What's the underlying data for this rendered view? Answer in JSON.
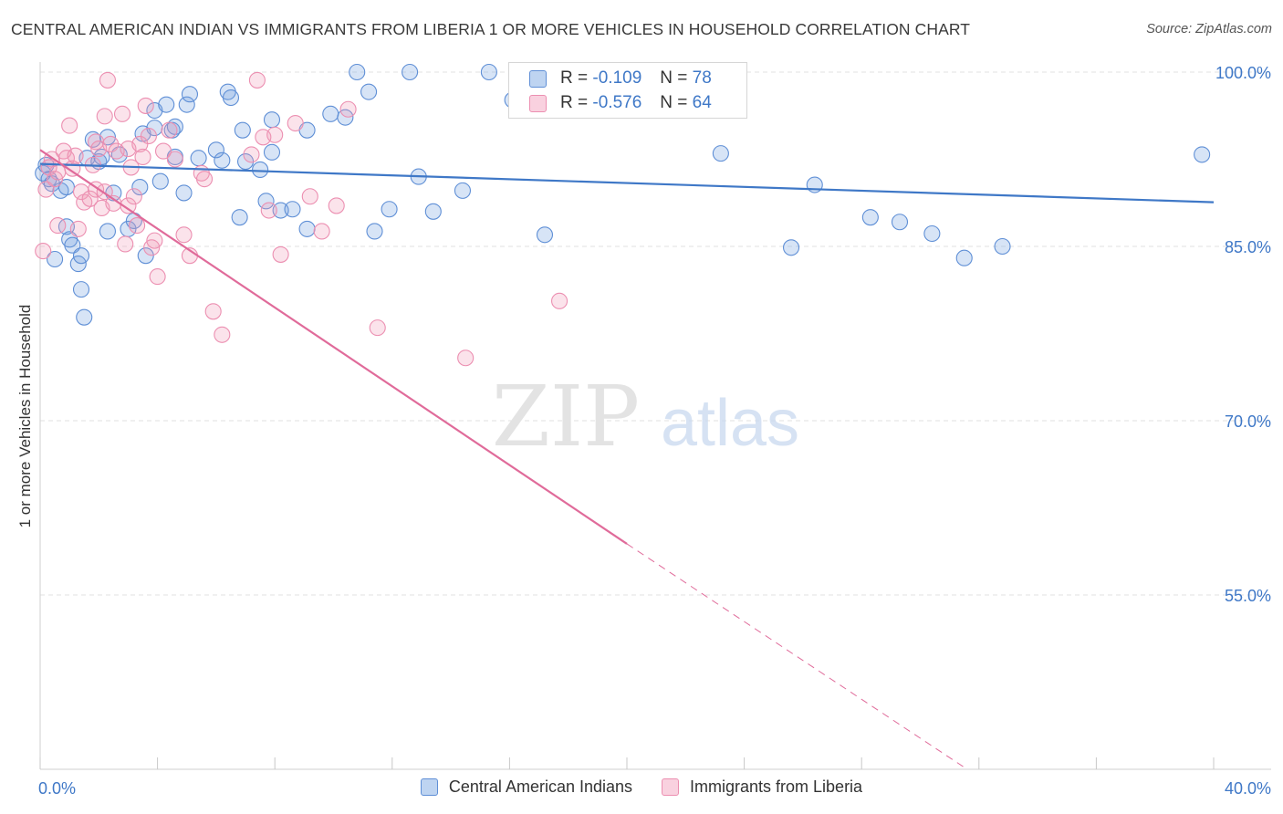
{
  "chart_data": {
    "type": "scatter",
    "title": "CENTRAL AMERICAN INDIAN VS IMMIGRANTS FROM LIBERIA 1 OR MORE VEHICLES IN HOUSEHOLD CORRELATION CHART",
    "source": "Source: ZipAtlas.com",
    "ylabel": "1 or more Vehicles in Household",
    "xlim": [
      0,
      40
    ],
    "ylim": [
      40,
      100
    ],
    "x_tick_labels": [
      "0.0%",
      "40.0%"
    ],
    "y_ticks": [
      55,
      70,
      85,
      100
    ],
    "y_tick_labels": [
      "55.0%",
      "70.0%",
      "85.0%",
      "100.0%"
    ],
    "watermark": {
      "zip": "ZIP",
      "atlas": "atlas"
    },
    "series": [
      {
        "name": "Central American Indians",
        "color": "#6f9fe0",
        "line_color": "#3f78c7",
        "R": "-0.109",
        "N": "78",
        "trend": {
          "x1": 0,
          "y1": 92.1,
          "x2": 40,
          "y2": 88.8
        },
        "points": [
          [
            0.1,
            91.3
          ],
          [
            0.2,
            92.0
          ],
          [
            0.3,
            90.8
          ],
          [
            0.4,
            90.4
          ],
          [
            0.5,
            83.9
          ],
          [
            0.7,
            89.8
          ],
          [
            0.9,
            86.7
          ],
          [
            0.9,
            90.1
          ],
          [
            1.0,
            85.6
          ],
          [
            1.1,
            85.1
          ],
          [
            1.3,
            83.5
          ],
          [
            1.4,
            84.2
          ],
          [
            1.4,
            81.3
          ],
          [
            1.5,
            78.9
          ],
          [
            1.6,
            92.6
          ],
          [
            1.8,
            94.2
          ],
          [
            2.0,
            92.3
          ],
          [
            2.1,
            92.7
          ],
          [
            2.3,
            94.4
          ],
          [
            2.3,
            86.3
          ],
          [
            2.5,
            89.6
          ],
          [
            2.7,
            92.9
          ],
          [
            3.0,
            86.5
          ],
          [
            3.2,
            87.2
          ],
          [
            3.4,
            90.1
          ],
          [
            3.5,
            94.7
          ],
          [
            3.6,
            84.2
          ],
          [
            3.9,
            96.7
          ],
          [
            3.9,
            95.2
          ],
          [
            4.1,
            90.6
          ],
          [
            4.3,
            97.2
          ],
          [
            4.5,
            95.0
          ],
          [
            4.6,
            95.3
          ],
          [
            4.6,
            92.7
          ],
          [
            4.9,
            89.6
          ],
          [
            5.0,
            97.2
          ],
          [
            5.1,
            98.1
          ],
          [
            5.4,
            92.6
          ],
          [
            6.0,
            93.3
          ],
          [
            6.2,
            92.4
          ],
          [
            6.4,
            98.3
          ],
          [
            6.5,
            97.8
          ],
          [
            6.8,
            87.5
          ],
          [
            6.9,
            95.0
          ],
          [
            7.0,
            92.3
          ],
          [
            7.5,
            91.6
          ],
          [
            7.7,
            88.9
          ],
          [
            7.9,
            93.1
          ],
          [
            7.9,
            95.9
          ],
          [
            8.2,
            88.1
          ],
          [
            8.6,
            88.2
          ],
          [
            9.1,
            86.5
          ],
          [
            9.1,
            95.0
          ],
          [
            9.9,
            96.4
          ],
          [
            10.4,
            96.1
          ],
          [
            10.8,
            100.0
          ],
          [
            11.2,
            98.3
          ],
          [
            11.4,
            86.3
          ],
          [
            11.9,
            88.2
          ],
          [
            12.6,
            100.0
          ],
          [
            12.9,
            91.0
          ],
          [
            13.4,
            88.0
          ],
          [
            14.4,
            89.8
          ],
          [
            15.3,
            100.0
          ],
          [
            16.1,
            97.6
          ],
          [
            17.2,
            86.0
          ],
          [
            17.6,
            100.0
          ],
          [
            18.6,
            100.0
          ],
          [
            22.7,
            100.0
          ],
          [
            23.2,
            93.0
          ],
          [
            25.6,
            84.9
          ],
          [
            26.4,
            90.3
          ],
          [
            28.3,
            87.5
          ],
          [
            29.3,
            87.1
          ],
          [
            30.4,
            86.1
          ],
          [
            31.5,
            84.0
          ],
          [
            32.8,
            85.0
          ],
          [
            39.6,
            92.9
          ]
        ]
      },
      {
        "name": "Immigrants from Liberia",
        "color": "#f29ab8",
        "line_color": "#e06b9a",
        "R": "-0.576",
        "N": "64",
        "trend": {
          "x1": 0,
          "y1": 93.3,
          "x2": 20,
          "y2": 59.4
        },
        "trend_dashed": {
          "x1": 20,
          "y1": 59.4,
          "x2": 31.6,
          "y2": 40.0
        },
        "points": [
          [
            0.1,
            84.6
          ],
          [
            0.2,
            89.9
          ],
          [
            0.3,
            91.8
          ],
          [
            0.4,
            92.5
          ],
          [
            0.5,
            90.8
          ],
          [
            0.6,
            86.8
          ],
          [
            0.6,
            91.4
          ],
          [
            0.8,
            93.2
          ],
          [
            0.9,
            92.6
          ],
          [
            1.0,
            95.4
          ],
          [
            1.1,
            91.7
          ],
          [
            1.2,
            92.8
          ],
          [
            1.3,
            86.5
          ],
          [
            1.4,
            89.7
          ],
          [
            1.5,
            88.8
          ],
          [
            1.7,
            89.1
          ],
          [
            1.8,
            92.0
          ],
          [
            1.9,
            94.0
          ],
          [
            1.9,
            89.9
          ],
          [
            2.0,
            93.4
          ],
          [
            2.1,
            88.3
          ],
          [
            2.2,
            89.7
          ],
          [
            2.2,
            96.2
          ],
          [
            2.3,
            99.3
          ],
          [
            2.4,
            93.8
          ],
          [
            2.5,
            88.7
          ],
          [
            2.6,
            93.2
          ],
          [
            2.8,
            96.4
          ],
          [
            2.9,
            85.2
          ],
          [
            3.0,
            88.5
          ],
          [
            3.0,
            93.4
          ],
          [
            3.1,
            91.8
          ],
          [
            3.2,
            89.3
          ],
          [
            3.3,
            86.8
          ],
          [
            3.4,
            93.8
          ],
          [
            3.5,
            92.7
          ],
          [
            3.6,
            97.1
          ],
          [
            3.7,
            94.5
          ],
          [
            3.8,
            84.9
          ],
          [
            3.9,
            85.5
          ],
          [
            4.0,
            82.4
          ],
          [
            4.2,
            93.2
          ],
          [
            4.4,
            95.0
          ],
          [
            4.6,
            92.5
          ],
          [
            4.9,
            86.0
          ],
          [
            5.1,
            84.2
          ],
          [
            5.5,
            91.3
          ],
          [
            5.6,
            90.8
          ],
          [
            5.9,
            79.4
          ],
          [
            6.2,
            77.4
          ],
          [
            7.2,
            92.9
          ],
          [
            7.4,
            99.3
          ],
          [
            7.6,
            94.4
          ],
          [
            7.8,
            88.1
          ],
          [
            8.0,
            94.6
          ],
          [
            8.2,
            84.3
          ],
          [
            8.7,
            95.6
          ],
          [
            9.2,
            89.3
          ],
          [
            9.6,
            86.3
          ],
          [
            10.1,
            88.5
          ],
          [
            10.5,
            96.8
          ],
          [
            11.5,
            78.0
          ],
          [
            14.5,
            75.4
          ],
          [
            17.7,
            80.3
          ]
        ]
      }
    ]
  },
  "legend": {
    "r_label": "R =",
    "n_label": "N ="
  }
}
